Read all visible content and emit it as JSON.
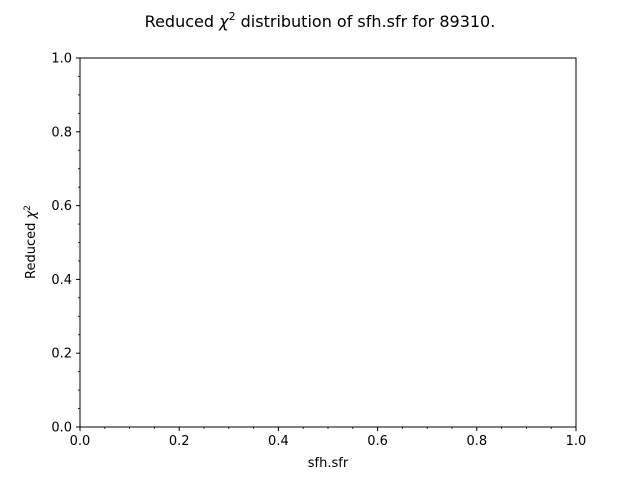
{
  "chart_data": {
    "type": "scatter",
    "title_prefix": "Reduced ",
    "title_chi": "χ",
    "title_sup": "2",
    "title_suffix": " distribution of sfh.sfr for 89310.",
    "xlabel": "sfh.sfr",
    "ylabel_prefix": "Reduced ",
    "ylabel_chi": "χ",
    "ylabel_sup": "2",
    "xlim": [
      0.0,
      1.0
    ],
    "ylim": [
      0.0,
      1.0
    ],
    "xticks": [
      "0.0",
      "0.2",
      "0.4",
      "0.6",
      "0.8",
      "1.0"
    ],
    "yticks": [
      "0.0",
      "0.2",
      "0.4",
      "0.6",
      "0.8",
      "1.0"
    ],
    "grid": false,
    "series": []
  }
}
